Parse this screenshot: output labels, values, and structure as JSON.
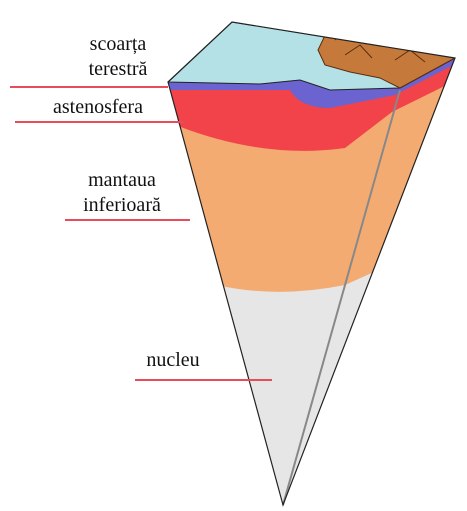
{
  "labels": [
    {
      "lines": [
        "scoarța",
        "terestră"
      ]
    },
    {
      "lines": [
        "astenosfera"
      ]
    },
    {
      "lines": [
        "mantaua",
        "inferioară"
      ]
    },
    {
      "lines": [
        "nucleu"
      ]
    }
  ]
}
